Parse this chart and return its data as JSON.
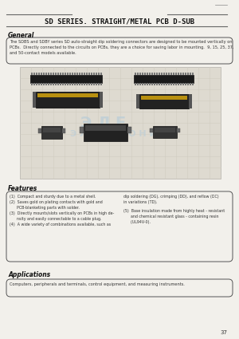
{
  "title": "SD SERIES. STRAIGHT/METAL PCB D-SUB",
  "bg_color": "#f2f0eb",
  "page_number": "37",
  "general_heading": "General",
  "general_text": "The SDBS and SDBY series SD auto-straight dip soldering connectors are designed to be mounted vertically on\nPCBs.  Directly connected to the circuits on PCBs, they are a choice for saving labor in mounting.  9, 15, 25, 37,\nand 50-contact models available.",
  "features_heading": "Features",
  "features_col1": "(1)  Compact and sturdy due to a metal shell.\n(2)  Saves gold on plating contacts with gold and\n      PCB-blanketing parts with solder.\n(3)  Directly mounts/slots vertically on PCBs in high de-\n      nsity and easily connectable to a cable plug.\n(4)  A wide variety of combinations available, such as",
  "features_col2_top": "dip soldering (DG), crimping (DD), and reflow (DC)\nin variations (TD).",
  "features_col2_bot": "(5)  Base insulation made from highly heat - resistant\n      and chemical resistant glass - containing resin\n      (UL94V-0).",
  "applications_heading": "Applications",
  "applications_text": "Computers, peripherals and terminals, control equipment, and measuring instruments.",
  "watermark_line1": "Э Л Е",
  "watermark_line2": "Э Л Е К Т Р О Н И К А",
  "watermark_color": "#b8ccd8",
  "grid_color": "#d0ccc0",
  "grid_bg": "#dedad0"
}
